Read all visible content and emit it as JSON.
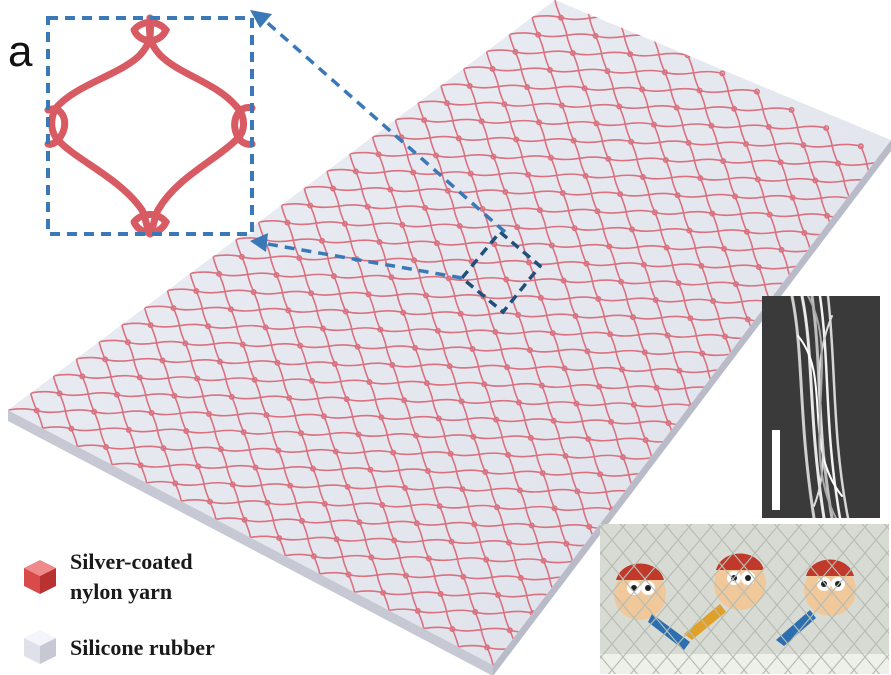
{
  "panel_label": "a",
  "legend": {
    "yarn_line1": "Silver-coated",
    "yarn_line2": "nylon yarn",
    "rubber": "Silicone rubber"
  },
  "colors": {
    "yarn": "#d9717f",
    "rubber_top": "#e6e7f0",
    "rubber_side": "#c9cbd6",
    "dashed_arrow": "#3a78b8",
    "zoom_box": "#1f4f7a",
    "inset_yarn": "#d85a63"
  }
}
